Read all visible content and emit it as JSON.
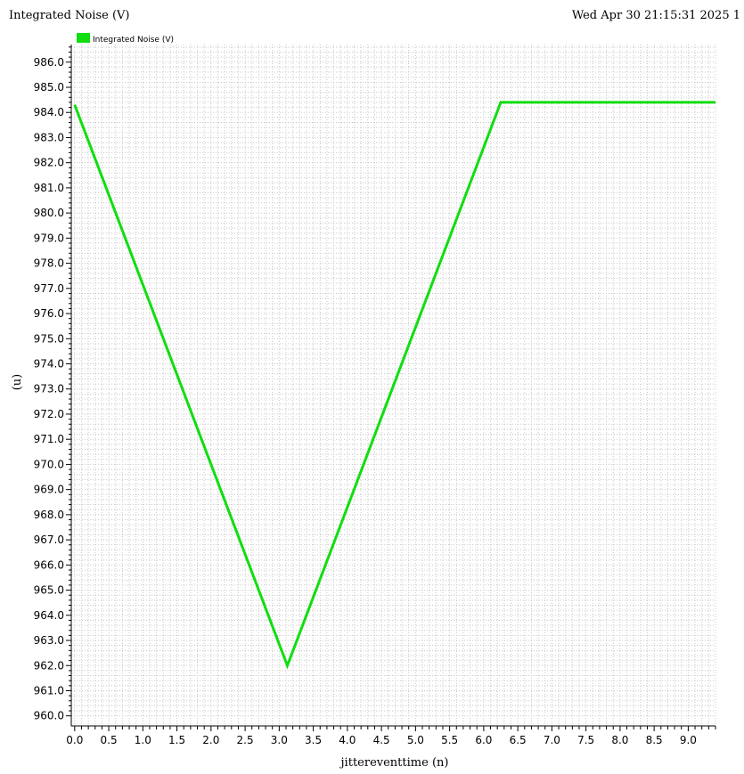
{
  "header": {
    "title": "Integrated Noise (V)",
    "timestamp": "Wed Apr 30 21:15:31 2025   1"
  },
  "chart_data": {
    "type": "line",
    "xlabel": "jittereventtime (n)",
    "ylabel": "(u)",
    "xlim": [
      -0.05,
      9.4
    ],
    "ylim": [
      959.6,
      986.7
    ],
    "xticks": [
      0.0,
      0.5,
      1.0,
      1.5,
      2.0,
      2.5,
      3.0,
      3.5,
      4.0,
      4.5,
      5.0,
      5.5,
      6.0,
      6.5,
      7.0,
      7.5,
      8.0,
      8.5,
      9.0
    ],
    "yticks": [
      960.0,
      961.0,
      962.0,
      963.0,
      964.0,
      965.0,
      966.0,
      967.0,
      968.0,
      969.0,
      970.0,
      971.0,
      972.0,
      973.0,
      974.0,
      975.0,
      976.0,
      977.0,
      978.0,
      979.0,
      980.0,
      981.0,
      982.0,
      983.0,
      984.0,
      985.0,
      986.0
    ],
    "grid": true,
    "legend_position": "top-left",
    "series": [
      {
        "name": "Integrated Noise (V)",
        "color": "#11dd11",
        "x": [
          0.0,
          3.12,
          6.25,
          9.4
        ],
        "y": [
          984.3,
          962.0,
          984.4,
          984.4
        ]
      }
    ]
  }
}
